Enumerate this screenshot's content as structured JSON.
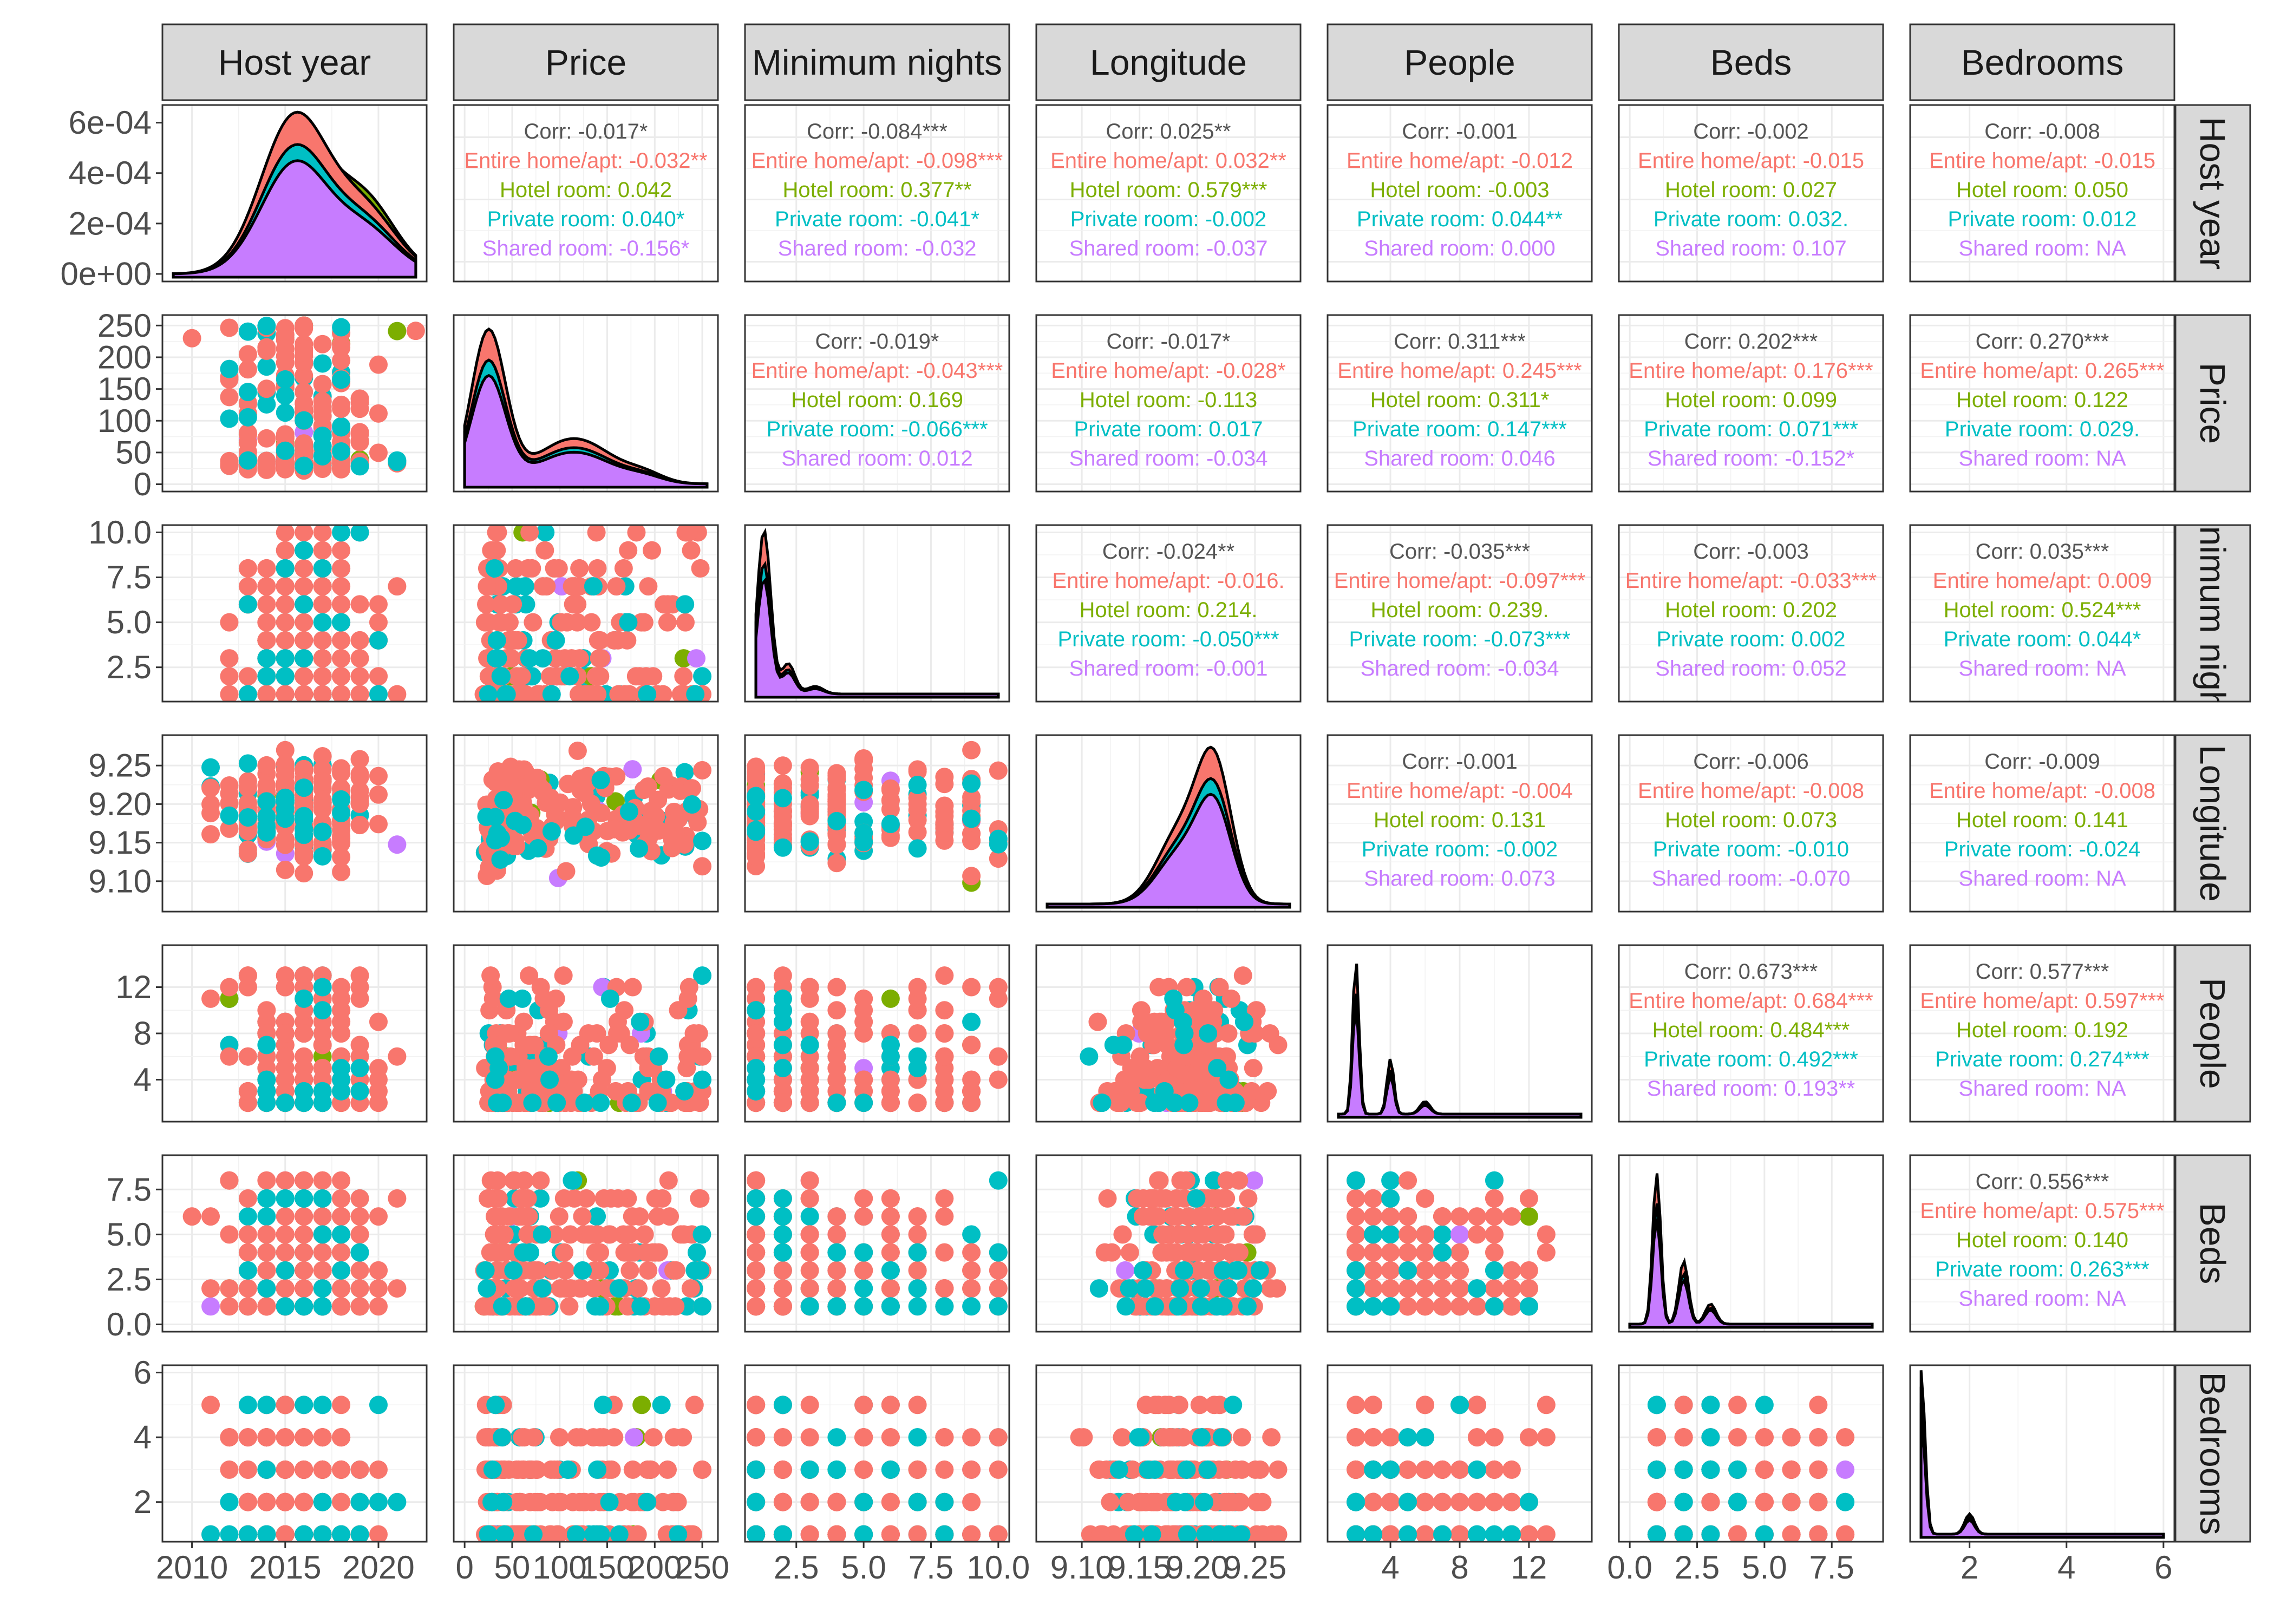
{
  "chart_data": {
    "type": "scatterplot-matrix",
    "variables": [
      "Host year",
      "Price",
      "Minimum nights",
      "Longitude",
      "People",
      "Beds",
      "Bedrooms"
    ],
    "strip_labels_top": [
      "Host year",
      "Price",
      "Minimum nights",
      "Longitude",
      "People",
      "Beds",
      "Bedrooms"
    ],
    "strip_labels_right": [
      "Host year",
      "Price",
      "Minimum nights",
      "Longitude",
      "People",
      "Beds",
      "Bedrooms"
    ],
    "groups": [
      "Entire home/apt",
      "Hotel room",
      "Private room",
      "Shared room"
    ],
    "group_colors": [
      "#F8766D",
      "#7CAE00",
      "#00BFC4",
      "#C77CFF"
    ],
    "y_ticks": [
      [
        "0e+00",
        "2e-04",
        "4e-04",
        "6e-04"
      ],
      [
        "0",
        "50",
        "100",
        "150",
        "200",
        "250"
      ],
      [
        "2.5",
        "5.0",
        "7.5",
        "10.0"
      ],
      [
        "9.10",
        "9.15",
        "9.20",
        "9.25"
      ],
      [
        "4",
        "8",
        "12"
      ],
      [
        "0.0",
        "2.5",
        "5.0",
        "7.5"
      ],
      [
        "2",
        "4",
        "6"
      ]
    ],
    "x_ticks": [
      [
        "2010",
        "2015",
        "2020"
      ],
      [
        "0",
        "50",
        "100",
        "150",
        "200",
        "250"
      ],
      [
        "2.5",
        "5.0",
        "7.5",
        "10.0"
      ],
      [
        "9.10",
        "9.15",
        "9.20",
        "9.25"
      ],
      [
        "4",
        "8",
        "12"
      ],
      [
        "0.0",
        "2.5",
        "5.0",
        "7.5"
      ],
      [
        "2",
        "4",
        "6"
      ]
    ],
    "ranges": [
      [
        2009,
        2022
      ],
      [
        0,
        255
      ],
      [
        1,
        10
      ],
      [
        9.07,
        9.28
      ],
      [
        1,
        15
      ],
      [
        0,
        9
      ],
      [
        1,
        6
      ]
    ],
    "correlations": [
      {
        "row": 0,
        "col": 1,
        "overall": "-0.017*",
        "groups": [
          "-0.032**",
          "0.042",
          "0.040*",
          "-0.156*"
        ]
      },
      {
        "row": 0,
        "col": 2,
        "overall": "-0.084***",
        "groups": [
          "-0.098***",
          "0.377**",
          "-0.041*",
          "-0.032"
        ]
      },
      {
        "row": 0,
        "col": 3,
        "overall": "0.025**",
        "groups": [
          "0.032**",
          "0.579***",
          "-0.002",
          "-0.037"
        ]
      },
      {
        "row": 0,
        "col": 4,
        "overall": "-0.001",
        "groups": [
          "-0.012",
          "-0.003",
          "0.044**",
          "0.000"
        ]
      },
      {
        "row": 0,
        "col": 5,
        "overall": "-0.002",
        "groups": [
          "-0.015",
          "0.027",
          "0.032.",
          "0.107"
        ]
      },
      {
        "row": 0,
        "col": 6,
        "overall": "-0.008",
        "groups": [
          "-0.015",
          "0.050",
          "0.012",
          "  NA"
        ]
      },
      {
        "row": 1,
        "col": 2,
        "overall": "-0.019*",
        "groups": [
          "-0.043***",
          "0.169",
          "-0.066***",
          "0.012"
        ]
      },
      {
        "row": 1,
        "col": 3,
        "overall": "-0.017*",
        "groups": [
          "-0.028*",
          "-0.113",
          "0.017",
          "-0.034"
        ]
      },
      {
        "row": 1,
        "col": 4,
        "overall": "0.311***",
        "groups": [
          "0.245***",
          "0.311*",
          "0.147***",
          "0.046"
        ]
      },
      {
        "row": 1,
        "col": 5,
        "overall": "0.202***",
        "groups": [
          "0.176***",
          "0.099",
          "0.071***",
          "-0.152*"
        ]
      },
      {
        "row": 1,
        "col": 6,
        "overall": "0.270***",
        "groups": [
          "0.265***",
          "0.122",
          "0.029.",
          "  NA"
        ]
      },
      {
        "row": 2,
        "col": 3,
        "overall": "-0.024**",
        "groups": [
          "-0.016.",
          "0.214.",
          "-0.050***",
          "-0.001"
        ]
      },
      {
        "row": 2,
        "col": 4,
        "overall": "-0.035***",
        "groups": [
          "-0.097***",
          "0.239.",
          "-0.073***",
          "-0.034"
        ]
      },
      {
        "row": 2,
        "col": 5,
        "overall": "-0.003",
        "groups": [
          "-0.033***",
          "0.202",
          "0.002",
          "0.052"
        ]
      },
      {
        "row": 2,
        "col": 6,
        "overall": "0.035***",
        "groups": [
          "0.009",
          "0.524***",
          "0.044*",
          "  NA"
        ]
      },
      {
        "row": 3,
        "col": 4,
        "overall": "-0.001",
        "groups": [
          "-0.004",
          "0.131",
          "-0.002",
          "0.073"
        ]
      },
      {
        "row": 3,
        "col": 5,
        "overall": "-0.006",
        "groups": [
          "-0.008",
          "0.073",
          "-0.010",
          "-0.070"
        ]
      },
      {
        "row": 3,
        "col": 6,
        "overall": "-0.009",
        "groups": [
          "-0.008",
          "0.141",
          "-0.024",
          "  NA"
        ]
      },
      {
        "row": 4,
        "col": 5,
        "overall": "0.673***",
        "groups": [
          "0.684***",
          "0.484***",
          "0.492***",
          "0.193**"
        ]
      },
      {
        "row": 4,
        "col": 6,
        "overall": "0.577***",
        "groups": [
          "0.597***",
          "0.192",
          "0.274***",
          "  NA"
        ]
      },
      {
        "row": 5,
        "col": 6,
        "overall": "0.556***",
        "groups": [
          "0.575***",
          "0.140",
          "0.263***",
          "  NA"
        ]
      }
    ],
    "corr_prefix": "Corr: ",
    "group_prefixes": [
      "Entire home/apt: ",
      "Hotel room: ",
      "Private room: ",
      "Shared room: "
    ]
  }
}
